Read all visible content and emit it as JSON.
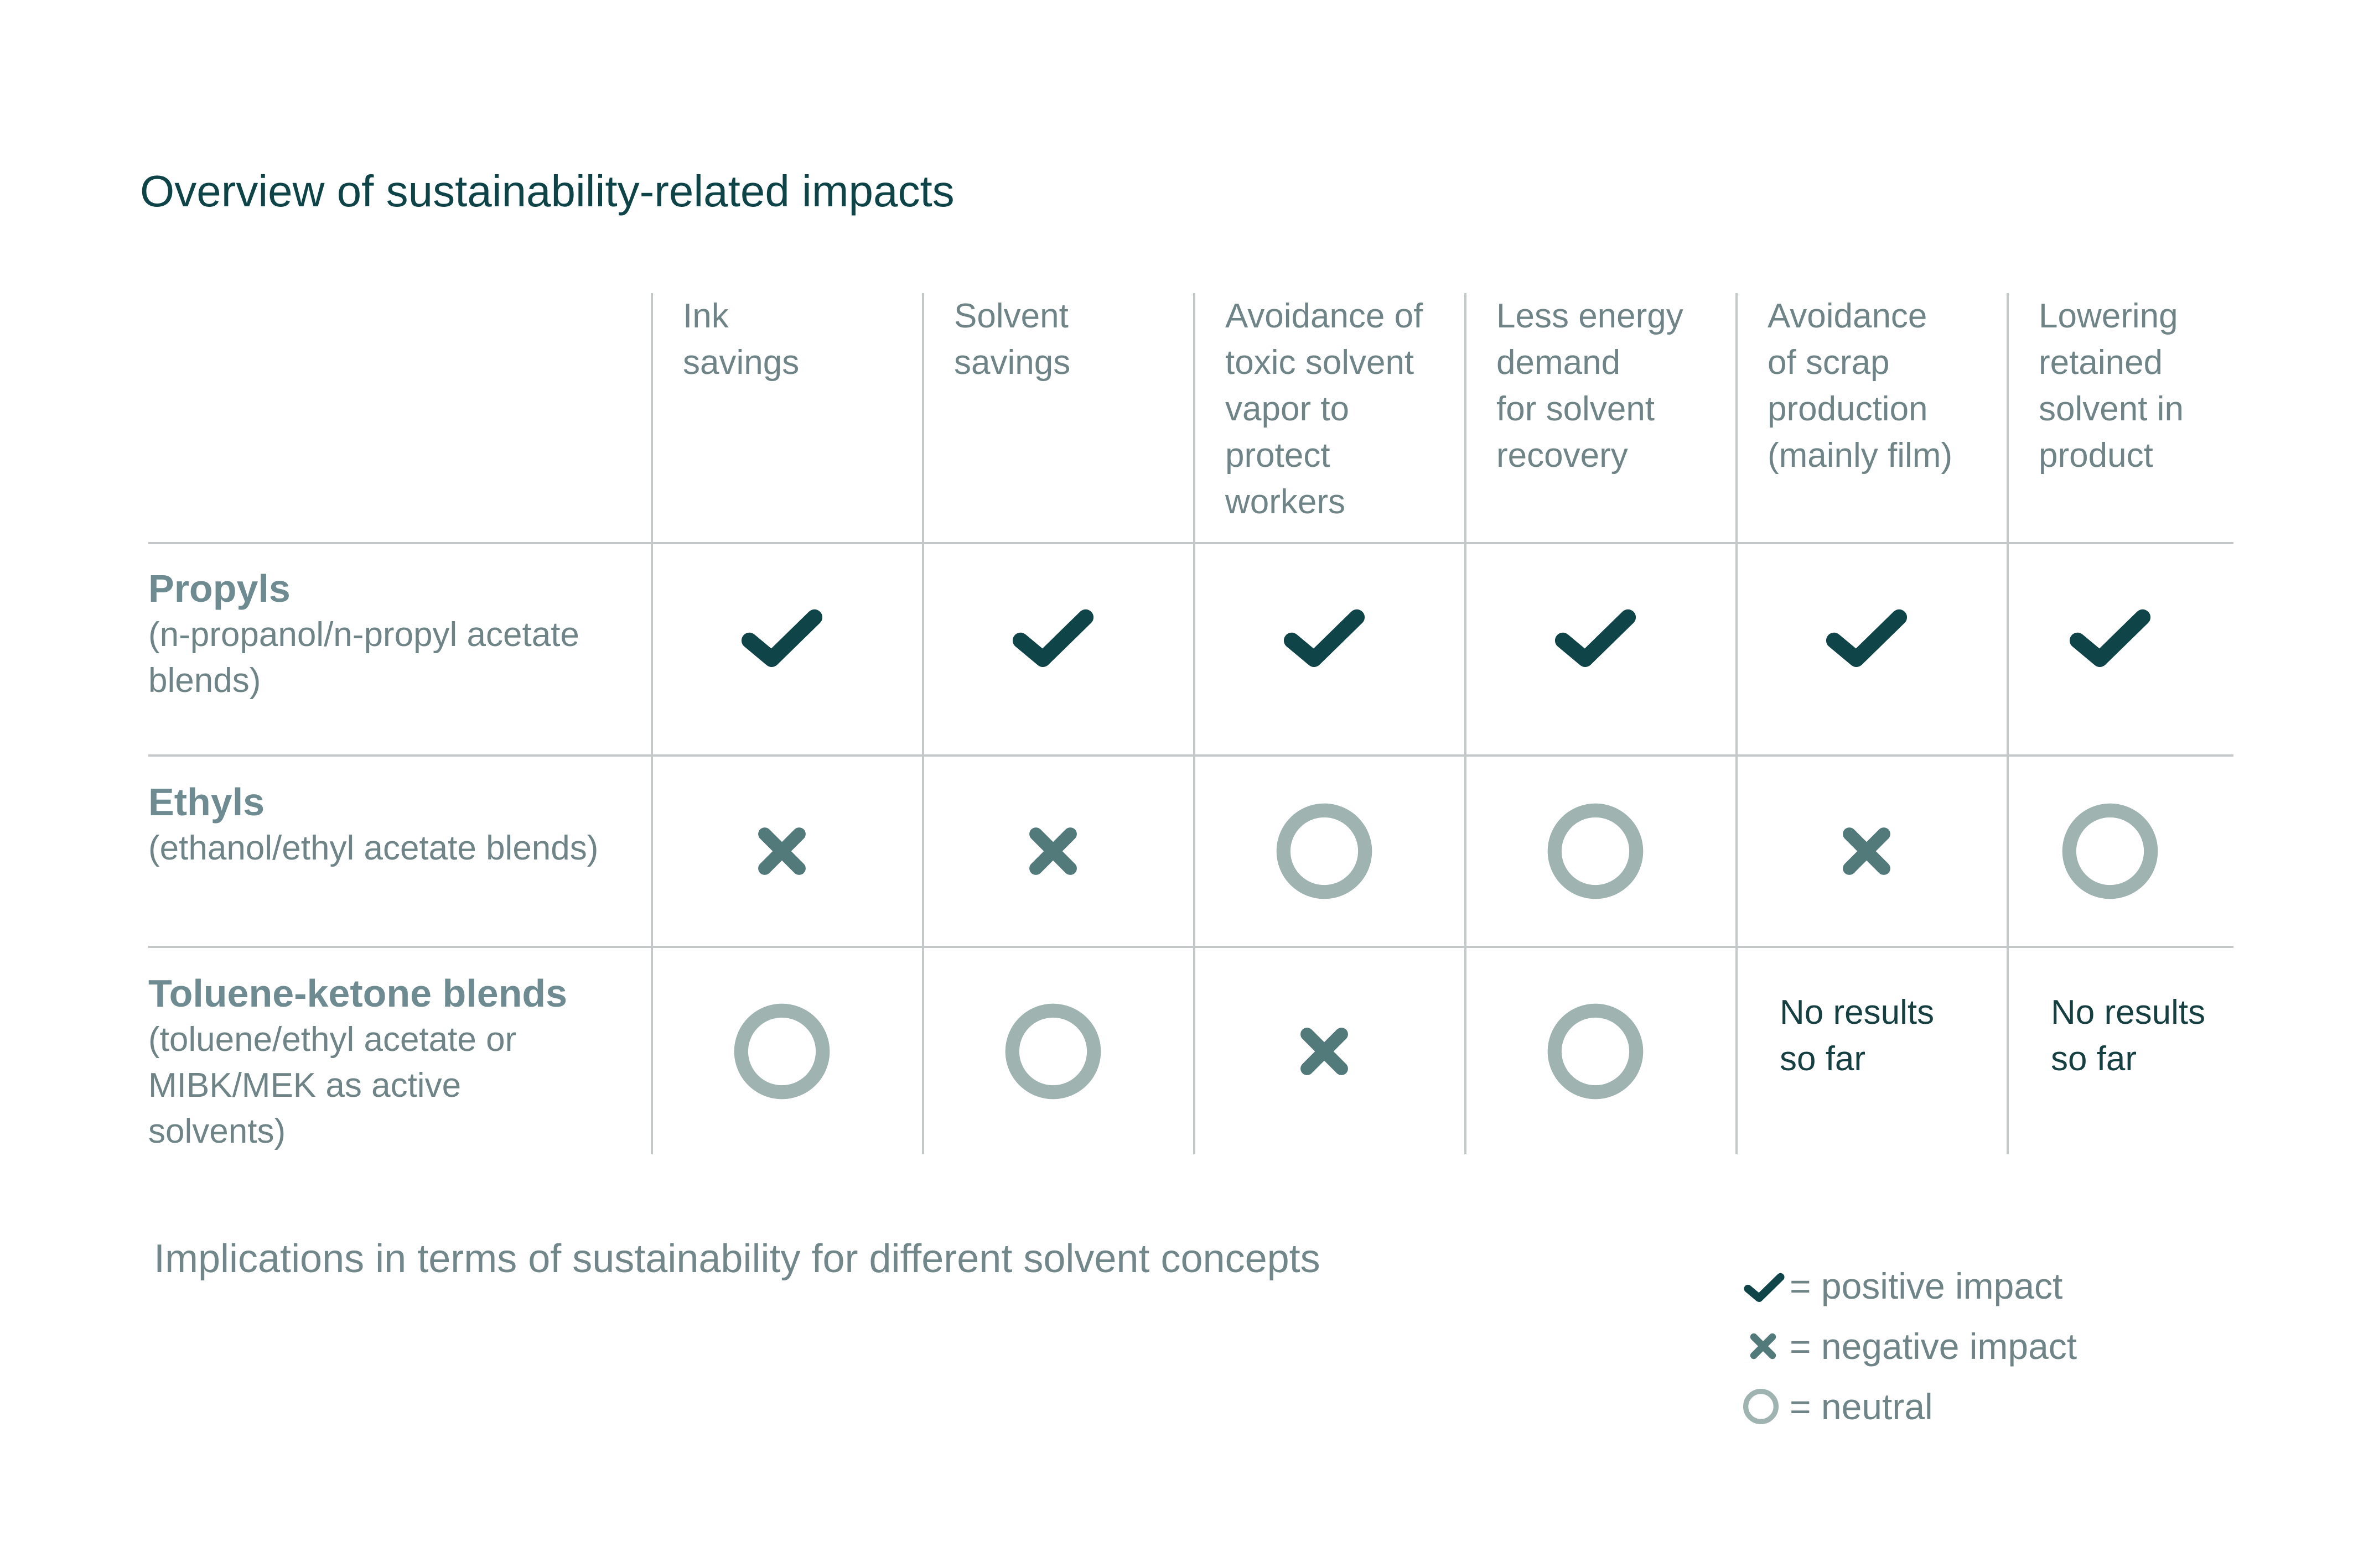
{
  "title": "Overview of sustainability-related impacts",
  "columns": [
    "Ink savings",
    "Solvent savings",
    "Avoidance of toxic solvent vapor to protect workers",
    "Less energy demand for solvent recovery",
    "Avoidance of scrap production (mainly film)",
    "Lowering retained solvent in product"
  ],
  "column_lines": [
    [
      "Ink",
      "savings"
    ],
    [
      "Solvent",
      "savings"
    ],
    [
      "Avoidance of",
      "toxic solvent",
      "vapor to",
      "protect",
      "workers"
    ],
    [
      "Less energy",
      "demand",
      "for solvent",
      "recovery"
    ],
    [
      "Avoidance",
      "of  scrap",
      "production",
      "(mainly film)"
    ],
    [
      "Lowering",
      "retained",
      "solvent in",
      "product"
    ]
  ],
  "rows": [
    {
      "name": "Propyls",
      "detail": "(n-propanol/n-propyl acetate blends)",
      "cells": [
        "positive",
        "positive",
        "positive",
        "positive",
        "positive",
        "positive"
      ]
    },
    {
      "name": "Ethyls",
      "detail": "(ethanol/ethyl acetate blends)",
      "cells": [
        "negative",
        "negative",
        "neutral",
        "neutral",
        "negative",
        "neutral"
      ]
    },
    {
      "name": "Toluene-ketone blends",
      "detail": "(toluene/ethyl acetate or MIBK/MEK as active solvents)",
      "cells": [
        "neutral",
        "neutral",
        "negative",
        "neutral",
        "No results so far",
        "No results so far"
      ]
    }
  ],
  "caption": "Implications in terms of sustainability for different solvent concepts",
  "legend": [
    {
      "symbol": "check-icon",
      "label": "= positive impact"
    },
    {
      "symbol": "x-icon",
      "label": "= negative impact"
    },
    {
      "symbol": "circle-icon",
      "label": "= neutral"
    }
  ],
  "colors": {
    "positive": "#0f4448",
    "negative": "#537a7a",
    "neutral": "#9fb3b1",
    "grid": "#c4c8c9"
  }
}
